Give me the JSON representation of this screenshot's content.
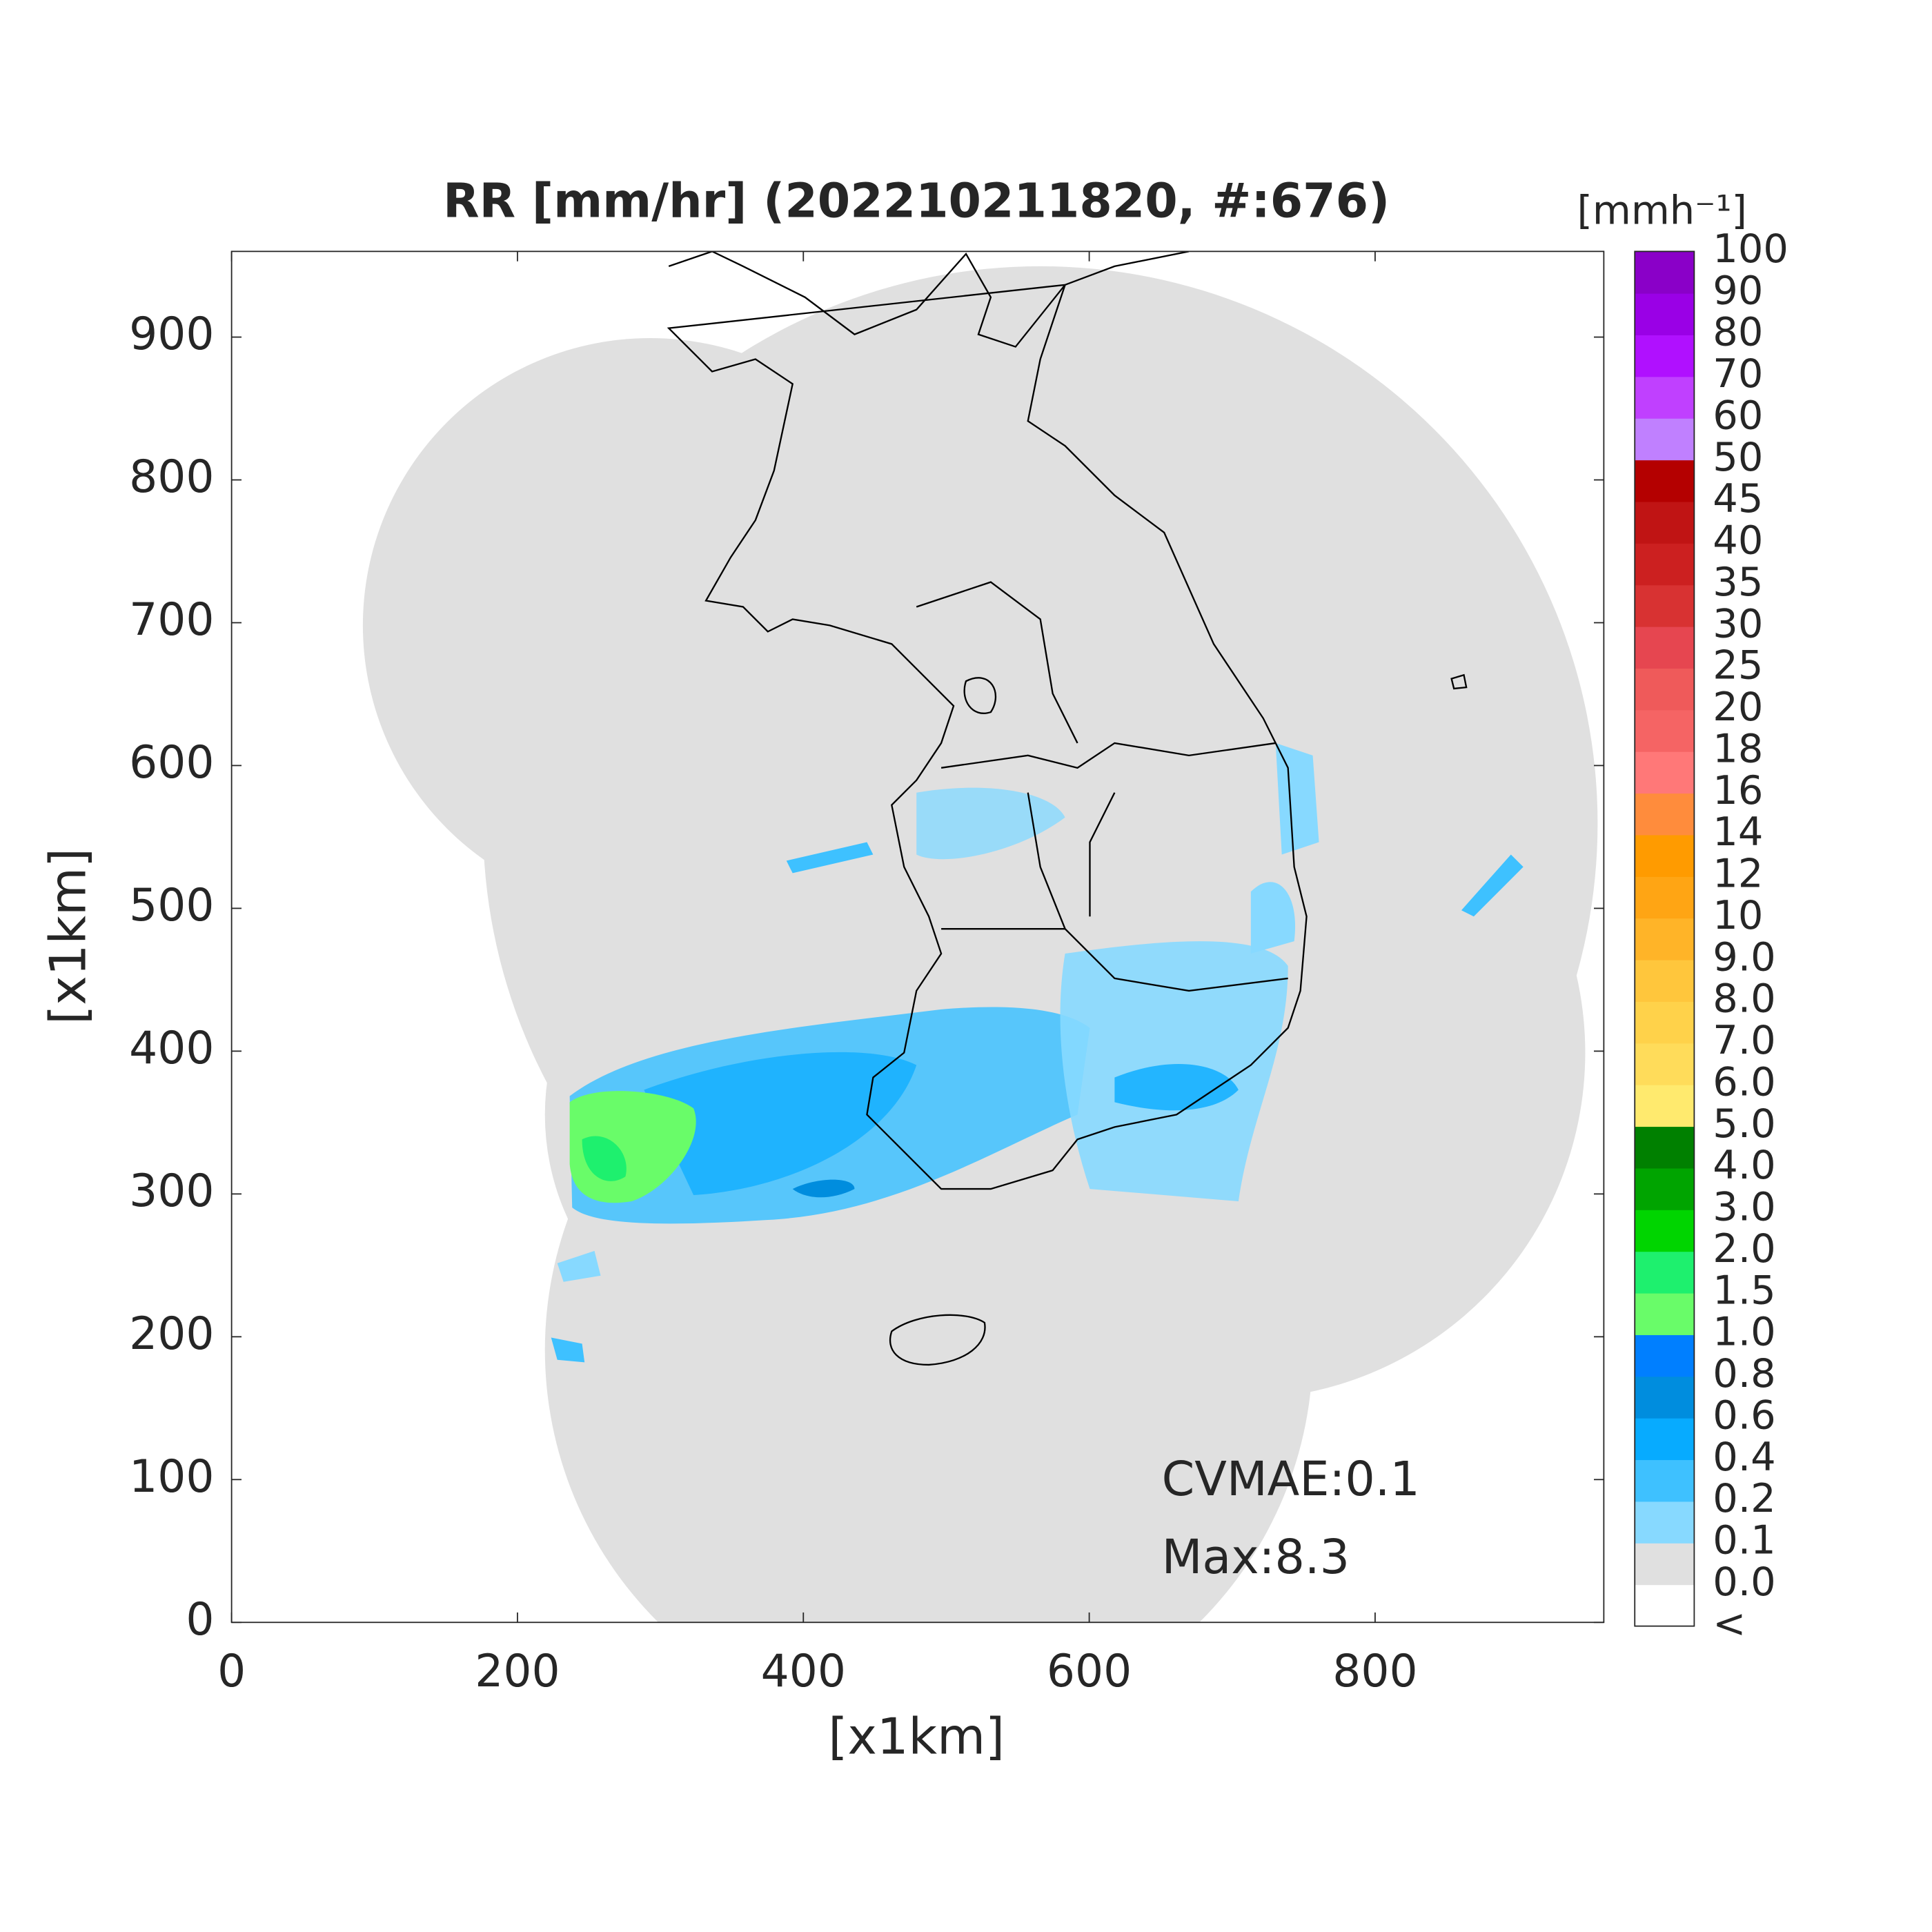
{
  "chart_data": {
    "type": "map",
    "title": "RR [mm/hr] (202210211820, #:676)",
    "x_label": "[x1km]",
    "y_label": "[x1km]",
    "xlim": [
      0,
      960
    ],
    "ylim": [
      0,
      960
    ],
    "xticks": [
      0,
      200,
      400,
      600,
      800
    ],
    "yticks": [
      0,
      100,
      200,
      300,
      400,
      500,
      600,
      700,
      800,
      900
    ],
    "annotations": [
      "CVMAE:0.1",
      "Max:8.3"
    ],
    "colorbar": {
      "label": "[mmh⁻¹]",
      "labels": [
        "<",
        "0.0",
        "0.1",
        "0.2",
        "0.4",
        "0.6",
        "0.8",
        "1.0",
        "1.5",
        "2.0",
        "3.0",
        "4.0",
        "5.0",
        "6.0",
        "7.0",
        "8.0",
        "9.0",
        "10",
        "12",
        "14",
        "16",
        "18",
        "20",
        "25",
        "30",
        "35",
        "40",
        "45",
        "50",
        "60",
        "70",
        "80",
        "90",
        "100"
      ],
      "colors": [
        "#ffffff",
        "#e0e0e0",
        "#87d9ff",
        "#3ec1ff",
        "#07abff",
        "#008dde",
        "#007fff",
        "#69fc69",
        "#1ef06e",
        "#00d500",
        "#00a400",
        "#008000",
        "#ffea6e",
        "#ffdc5a",
        "#ffd24a",
        "#ffc63c",
        "#ffb428",
        "#ffa514",
        "#ff9b00",
        "#ff8c3c",
        "#ff7878",
        "#f56464",
        "#ef5a5a",
        "#e64650",
        "#d83232",
        "#cc2020",
        "#c01414",
        "#b40000",
        "#c080ff",
        "#c040ff",
        "#b010ff",
        "#9a00e6",
        "#8a00c8",
        "#333333"
      ]
    }
  }
}
